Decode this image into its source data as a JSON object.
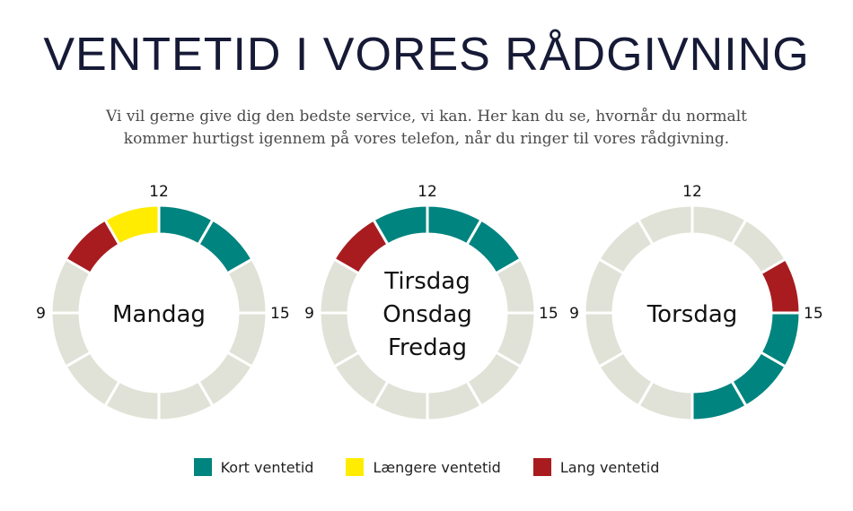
{
  "title": "VENTETID I VORES RÅDGIVNING",
  "subtitle_lines": [
    "Vi vil gerne give dig den bedste service, vi kan. Her kan du se, hvornår du normalt",
    "kommer hurtigst igennem på vores telefon, når du ringer til vores rådgivning."
  ],
  "chart_data": {
    "type": "pie",
    "subtype": "donut",
    "clock_labels": {
      "top": "12",
      "right": "15",
      "left": "9"
    },
    "segments_per_ring": 12,
    "segment_order": "clockwise from 12",
    "categories": {
      "kort": {
        "label": "Kort ventetid",
        "color": "#00847f"
      },
      "laengere": {
        "label": "Længere ventetid",
        "color": "#ffec00"
      },
      "lang": {
        "label": "Lang ventetid",
        "color": "#a81c20"
      },
      "none": {
        "label": "",
        "color": "#e1e2d7"
      }
    },
    "rings": [
      {
        "days": [
          "Mandag"
        ],
        "segments": [
          "kort",
          "kort",
          "none",
          "none",
          "none",
          "none",
          "none",
          "none",
          "none",
          "none",
          "lang",
          "laengere"
        ]
      },
      {
        "days": [
          "Tirsdag",
          "Onsdag",
          "Fredag"
        ],
        "segments": [
          "kort",
          "kort",
          "none",
          "none",
          "none",
          "none",
          "none",
          "none",
          "none",
          "none",
          "lang",
          "kort"
        ]
      },
      {
        "days": [
          "Torsdag"
        ],
        "segments": [
          "none",
          "none",
          "lang",
          "kort",
          "kort",
          "kort",
          "none",
          "none",
          "none",
          "none",
          "none",
          "none"
        ]
      }
    ],
    "legend": [
      {
        "key": "kort",
        "label": "Kort ventetid"
      },
      {
        "key": "laengere",
        "label": "Længere ventetid"
      },
      {
        "key": "lang",
        "label": "Lang ventetid"
      }
    ],
    "legend_position": "bottom"
  }
}
